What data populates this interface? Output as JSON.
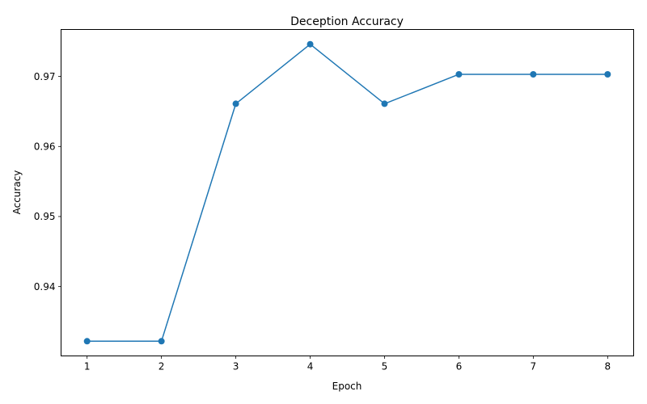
{
  "chart_data": {
    "type": "line",
    "title": "Deception Accuracy",
    "xlabel": "Epoch",
    "ylabel": "Accuracy",
    "x": [
      1,
      2,
      3,
      4,
      5,
      6,
      7,
      8
    ],
    "series": [
      {
        "values": [
          0.9322,
          0.9322,
          0.9661,
          0.9746,
          0.9661,
          0.9703,
          0.9703,
          0.9703
        ],
        "color": "#1f77b4",
        "marker": "circle"
      }
    ],
    "xlim": [
      0.65,
      8.35
    ],
    "ylim": [
      0.9301,
      0.9767
    ],
    "xticks": [
      1,
      2,
      3,
      4,
      5,
      6,
      7,
      8
    ],
    "yticks": [
      0.94,
      0.95,
      0.96,
      0.97
    ],
    "ytick_labels": [
      "0.94",
      "0.95",
      "0.96",
      "0.97"
    ],
    "grid": false,
    "legend": "none"
  }
}
